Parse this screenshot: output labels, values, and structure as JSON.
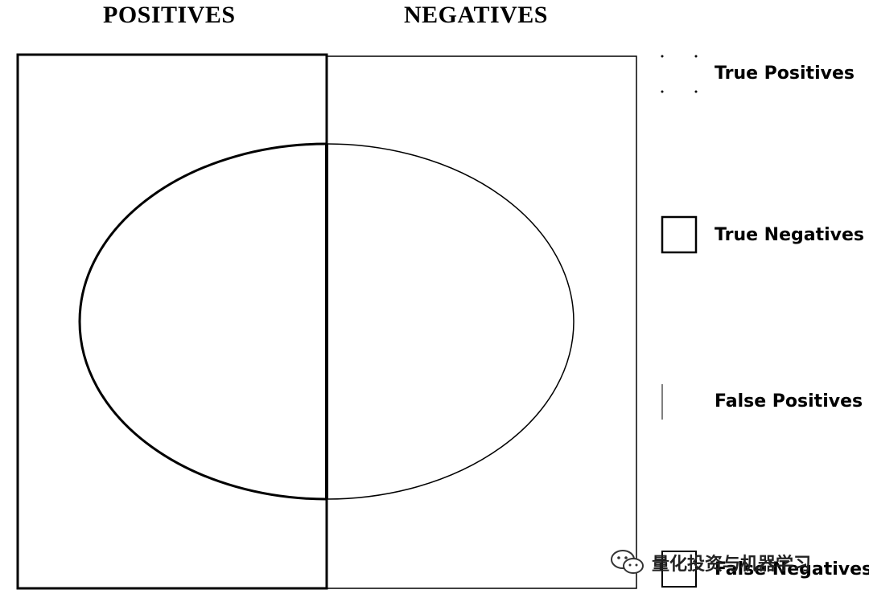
{
  "headers": {
    "positives": "POSITIVES",
    "negatives": "NEGATIVES"
  },
  "legend": {
    "items": [
      {
        "id": "tp",
        "label": "True Positives"
      },
      {
        "id": "tn",
        "label": "True Negatives"
      },
      {
        "id": "fp",
        "label": "False Positives"
      },
      {
        "id": "fn",
        "label": "False Negatives"
      }
    ]
  },
  "watermark": {
    "text": "量化投资与机器学习",
    "icon": "wechat-icon"
  },
  "colors": {
    "line": "#000000",
    "background": "#ffffff"
  }
}
